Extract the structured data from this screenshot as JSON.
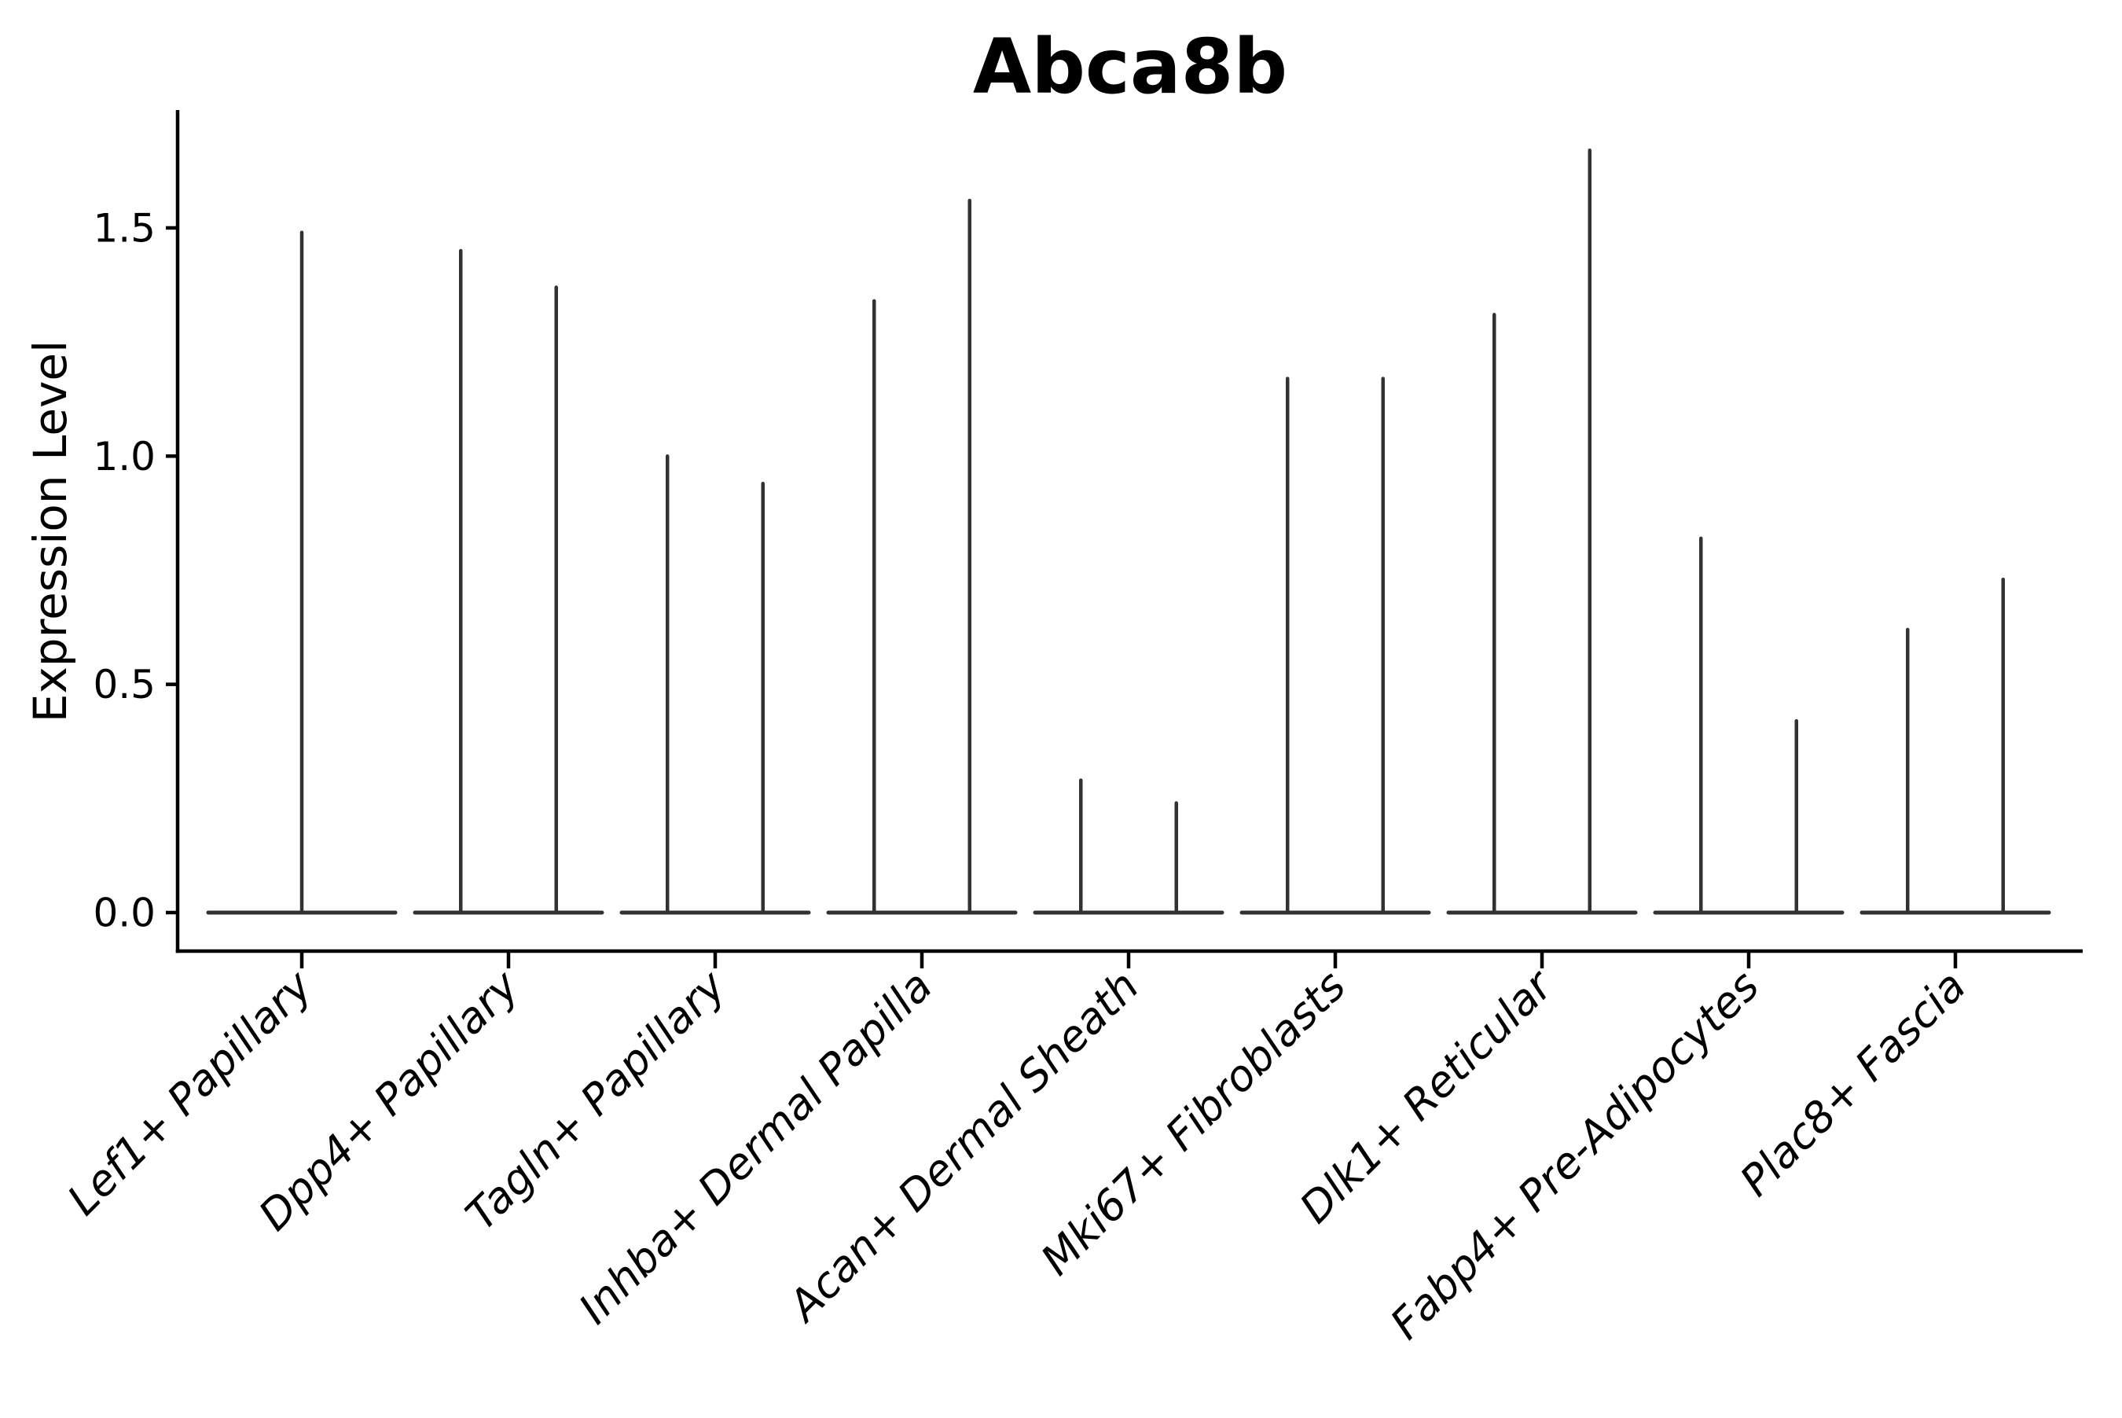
{
  "figure": {
    "background": "#ffffff"
  },
  "chart_data": {
    "type": "violin",
    "title": "Abca8b",
    "xlabel": "",
    "ylabel": "Expression Level",
    "yticks": [
      0.0,
      0.5,
      1.0,
      1.5
    ],
    "ytick_labels": [
      "0.0",
      "0.5",
      "1.0",
      "1.5"
    ],
    "ylim": [
      0,
      1.76
    ],
    "grid": false,
    "legend_position": "none",
    "x_tick_rotation_deg": 45,
    "categories": [
      "Lef1+ Papillary",
      "Dpp4+ Papillary",
      "Tagln+ Papillary",
      "Inhba+ Dermal Papilla",
      "Acan+ Dermal Sheath",
      "Mki67+ Fibroblasts",
      "Dlk1+ Reticular",
      "Fabp4+ Pre-Adipocytes",
      "Plac8+ Fascia"
    ],
    "violins": [
      {
        "category": "Lef1+ Papillary",
        "maxima": [
          1.49
        ]
      },
      {
        "category": "Dpp4+ Papillary",
        "maxima": [
          1.45,
          1.37
        ]
      },
      {
        "category": "Tagln+ Papillary",
        "maxima": [
          1.0,
          0.94
        ]
      },
      {
        "category": "Inhba+ Dermal Papilla",
        "maxima": [
          1.34,
          1.56
        ]
      },
      {
        "category": "Acan+ Dermal Sheath",
        "maxima": [
          0.29,
          0.24
        ]
      },
      {
        "category": "Mki67+ Fibroblasts",
        "maxima": [
          1.17,
          1.17
        ]
      },
      {
        "category": "Dlk1+ Reticular",
        "maxima": [
          1.31,
          1.67
        ]
      },
      {
        "category": "Fabp4+ Pre-Adipocytes",
        "maxima": [
          0.82,
          0.42
        ]
      },
      {
        "category": "Plac8+ Fascia",
        "maxima": [
          0.62,
          0.73
        ]
      }
    ],
    "shape_note": "Each violin is collapsed: wide flat base at expression 0 with a hairline spike up to the group maximum; first category has a single centered violin, all others have two side-by-side violins.",
    "colors": {
      "violin": "#323232",
      "axis": "#000000",
      "text": "#000000",
      "background": "#ffffff"
    }
  }
}
